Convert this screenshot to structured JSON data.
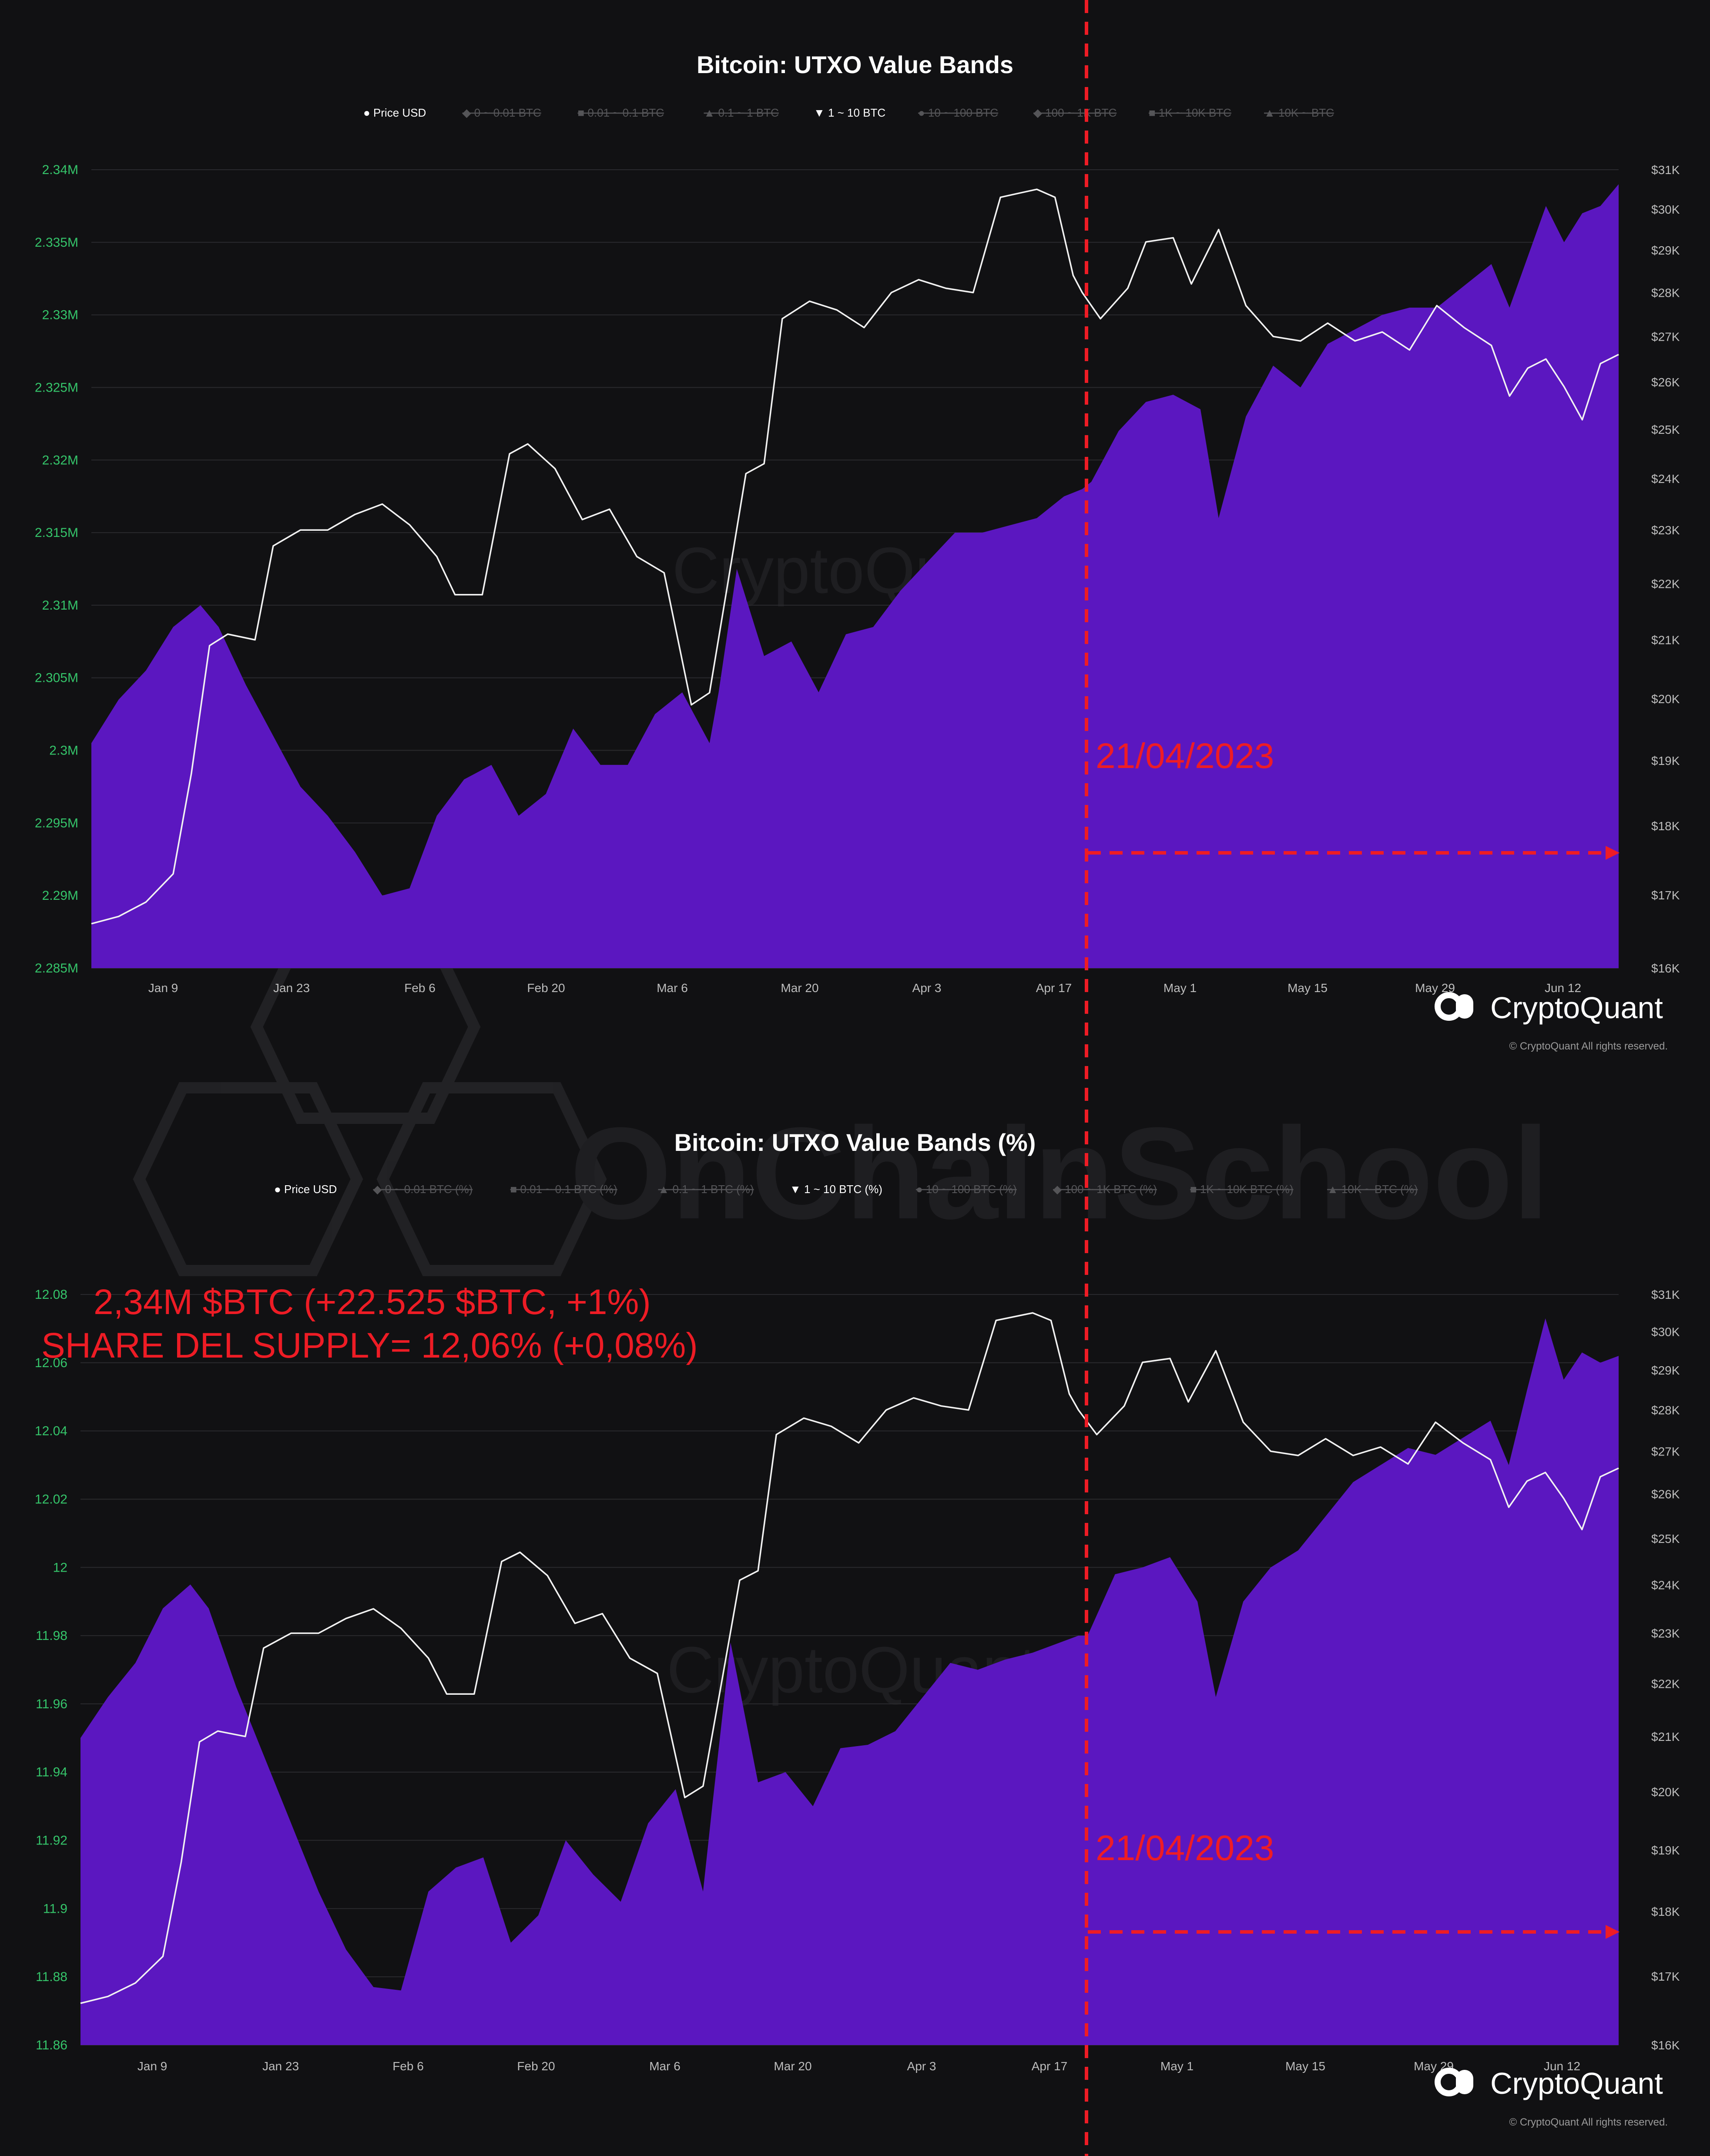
{
  "page": {
    "watermark_main": "OnChainSchool",
    "brand": "CryptoQuant",
    "copyright": "© CryptoQuant All rights reserved.",
    "chart_watermark": "CryptoQuant",
    "divider_date": "21/04/2023",
    "annotation_line1": "2,34M $BTC (+22.525 $BTC, +1%)",
    "annotation_line2": "SHARE DEL SUPPLY= 12,06% (+0,08%)",
    "colors": {
      "background": "#111113",
      "area": "#5b17c0",
      "price_line": "#f2f2f2",
      "left_ticks": "#35c46a",
      "right_ticks": "#bdbdbd",
      "annotation": "#ee1c25",
      "grid": "#2a2a2e"
    },
    "icons": [
      "cryptoquant-logo-icon",
      "hexagon-watermark-icon"
    ]
  },
  "chart_data": [
    {
      "type": "area",
      "title": "Bitcoin: UTXO Value Bands",
      "legend": [
        "● Price USD",
        "◆ 0 ~ 0.01 BTC",
        "■ 0.01 ~ 0.1 BTC",
        "▲ 0.1 ~ 1 BTC",
        "▼ 1 ~ 10 BTC",
        "● 10 ~ 100 BTC",
        "◆ 100 ~ 1K BTC",
        "■ 1K ~ 10K BTC",
        "▲ 10K ~ BTC"
      ],
      "legend_active": [
        true,
        false,
        false,
        false,
        true,
        false,
        false,
        false,
        false
      ],
      "x_ticks": [
        "Jan 9",
        "Jan 23",
        "Feb 6",
        "Feb 20",
        "Mar 6",
        "Mar 20",
        "Apr 3",
        "Apr 17",
        "May 1",
        "May 15",
        "May 29",
        "Jun 12"
      ],
      "y_left_ticks": [
        "2.285M",
        "2.29M",
        "2.295M",
        "2.3M",
        "2.305M",
        "2.31M",
        "2.315M",
        "2.32M",
        "2.325M",
        "2.33M",
        "2.335M",
        "2.34M"
      ],
      "y_right_ticks": [
        "$16K",
        "$17K",
        "$18K",
        "$19K",
        "$20K",
        "$21K",
        "$22K",
        "$23K",
        "$24K",
        "$25K",
        "$26K",
        "$27K",
        "$28K",
        "$29K",
        "$30K",
        "$31K"
      ],
      "ylim_left": [
        2.285,
        2.34
      ],
      "ylim_right": [
        16000,
        31000
      ],
      "right_scale": "log",
      "series": [
        {
          "name": "1 ~ 10 BTC",
          "axis": "left",
          "unit": "M BTC",
          "x": [
            "2023-01-01",
            "2023-01-04",
            "2023-01-07",
            "2023-01-10",
            "2023-01-13",
            "2023-01-15",
            "2023-01-18",
            "2023-01-21",
            "2023-01-24",
            "2023-01-27",
            "2023-01-30",
            "2023-02-02",
            "2023-02-05",
            "2023-02-08",
            "2023-02-11",
            "2023-02-14",
            "2023-02-17",
            "2023-02-20",
            "2023-02-23",
            "2023-02-26",
            "2023-03-01",
            "2023-03-04",
            "2023-03-07",
            "2023-03-10",
            "2023-03-11",
            "2023-03-13",
            "2023-03-16",
            "2023-03-19",
            "2023-03-22",
            "2023-03-25",
            "2023-03-28",
            "2023-03-31",
            "2023-04-03",
            "2023-04-06",
            "2023-04-09",
            "2023-04-12",
            "2023-04-15",
            "2023-04-18",
            "2023-04-20",
            "2023-04-21",
            "2023-04-24",
            "2023-04-27",
            "2023-04-30",
            "2023-05-03",
            "2023-05-05",
            "2023-05-08",
            "2023-05-11",
            "2023-05-14",
            "2023-05-17",
            "2023-05-20",
            "2023-05-23",
            "2023-05-26",
            "2023-05-29",
            "2023-06-01",
            "2023-06-04",
            "2023-06-06",
            "2023-06-08",
            "2023-06-10",
            "2023-06-12",
            "2023-06-14",
            "2023-06-16",
            "2023-06-18"
          ],
          "values": [
            2.3005,
            2.3035,
            2.3055,
            2.3085,
            2.31,
            2.3085,
            2.3045,
            2.301,
            2.2975,
            2.2955,
            2.293,
            2.29,
            2.2905,
            2.2955,
            2.298,
            2.299,
            2.2955,
            2.297,
            2.3015,
            2.299,
            2.299,
            2.3025,
            2.304,
            2.3005,
            2.304,
            2.3125,
            2.3065,
            2.3075,
            2.304,
            2.308,
            2.3085,
            2.311,
            2.313,
            2.315,
            2.315,
            2.3155,
            2.316,
            2.3175,
            2.318,
            2.3185,
            2.322,
            2.324,
            2.3245,
            2.3235,
            2.316,
            2.323,
            2.3265,
            2.325,
            2.328,
            2.329,
            2.33,
            2.3305,
            2.3305,
            2.332,
            2.3335,
            2.3305,
            2.334,
            2.3375,
            2.335,
            2.337,
            2.3375,
            2.339
          ]
        },
        {
          "name": "Price USD",
          "axis": "right",
          "unit": "USD",
          "x": [
            "2023-01-01",
            "2023-01-04",
            "2023-01-07",
            "2023-01-10",
            "2023-01-12",
            "2023-01-14",
            "2023-01-16",
            "2023-01-19",
            "2023-01-21",
            "2023-01-24",
            "2023-01-27",
            "2023-01-30",
            "2023-02-02",
            "2023-02-05",
            "2023-02-08",
            "2023-02-10",
            "2023-02-13",
            "2023-02-16",
            "2023-02-18",
            "2023-02-21",
            "2023-02-24",
            "2023-02-27",
            "2023-03-02",
            "2023-03-05",
            "2023-03-08",
            "2023-03-10",
            "2023-03-12",
            "2023-03-14",
            "2023-03-16",
            "2023-03-18",
            "2023-03-21",
            "2023-03-24",
            "2023-03-27",
            "2023-03-30",
            "2023-04-02",
            "2023-04-05",
            "2023-04-08",
            "2023-04-11",
            "2023-04-13",
            "2023-04-15",
            "2023-04-17",
            "2023-04-19",
            "2023-04-20",
            "2023-04-22",
            "2023-04-25",
            "2023-04-27",
            "2023-04-30",
            "2023-05-02",
            "2023-05-05",
            "2023-05-08",
            "2023-05-11",
            "2023-05-14",
            "2023-05-17",
            "2023-05-20",
            "2023-05-23",
            "2023-05-26",
            "2023-05-29",
            "2023-06-01",
            "2023-06-04",
            "2023-06-06",
            "2023-06-08",
            "2023-06-10",
            "2023-06-12",
            "2023-06-14",
            "2023-06-16",
            "2023-06-18"
          ],
          "values": [
            16600,
            16700,
            16900,
            17300,
            18800,
            20900,
            21100,
            21000,
            22700,
            23000,
            23000,
            23300,
            23500,
            23100,
            22500,
            21800,
            21800,
            24500,
            24700,
            24200,
            23200,
            23400,
            22500,
            22200,
            19900,
            20100,
            22000,
            24100,
            24300,
            27400,
            27800,
            27600,
            27200,
            28000,
            28300,
            28100,
            28000,
            30300,
            30400,
            30500,
            30300,
            28400,
            28000,
            27400,
            28100,
            29200,
            29300,
            28200,
            29500,
            27700,
            27000,
            26900,
            27300,
            26900,
            27100,
            26700,
            27700,
            27200,
            26800,
            25700,
            26300,
            26500,
            25900,
            25200,
            26400,
            26600
          ]
        }
      ]
    },
    {
      "type": "area",
      "title": "Bitcoin: UTXO Value Bands (%)",
      "legend": [
        "● Price USD",
        "◆ 0 ~ 0.01 BTC (%)",
        "■ 0.01 ~ 0.1 BTC (%)",
        "▲ 0.1 ~ 1 BTC (%)",
        "▼ 1 ~ 10 BTC (%)",
        "● 10 ~ 100 BTC (%)",
        "◆ 100 ~ 1K BTC (%)",
        "■ 1K ~ 10K BTC (%)",
        "▲ 10K ~ BTC (%)"
      ],
      "legend_active": [
        true,
        false,
        false,
        false,
        true,
        false,
        false,
        false,
        false
      ],
      "x_ticks": [
        "Jan 9",
        "Jan 23",
        "Feb 6",
        "Feb 20",
        "Mar 6",
        "Mar 20",
        "Apr 3",
        "Apr 17",
        "May 1",
        "May 15",
        "May 29",
        "Jun 12"
      ],
      "y_left_ticks": [
        "11.86",
        "11.88",
        "11.9",
        "11.92",
        "11.94",
        "11.96",
        "11.98",
        "12",
        "12.02",
        "12.04",
        "12.06",
        "12.08"
      ],
      "y_right_ticks": [
        "$16K",
        "$17K",
        "$18K",
        "$19K",
        "$20K",
        "$21K",
        "$22K",
        "$23K",
        "$24K",
        "$25K",
        "$26K",
        "$27K",
        "$28K",
        "$29K",
        "$30K",
        "$31K"
      ],
      "ylim_left": [
        11.86,
        12.08
      ],
      "ylim_right": [
        16000,
        31000
      ],
      "right_scale": "log",
      "series": [
        {
          "name": "1 ~ 10 BTC (%)",
          "axis": "left",
          "unit": "%",
          "x": [
            "2023-01-01",
            "2023-01-04",
            "2023-01-07",
            "2023-01-10",
            "2023-01-13",
            "2023-01-15",
            "2023-01-18",
            "2023-01-21",
            "2023-01-24",
            "2023-01-27",
            "2023-01-30",
            "2023-02-02",
            "2023-02-05",
            "2023-02-08",
            "2023-02-11",
            "2023-02-14",
            "2023-02-17",
            "2023-02-20",
            "2023-02-23",
            "2023-02-26",
            "2023-03-01",
            "2023-03-04",
            "2023-03-07",
            "2023-03-10",
            "2023-03-11",
            "2023-03-13",
            "2023-03-16",
            "2023-03-19",
            "2023-03-22",
            "2023-03-25",
            "2023-03-28",
            "2023-03-31",
            "2023-04-03",
            "2023-04-06",
            "2023-04-09",
            "2023-04-12",
            "2023-04-15",
            "2023-04-18",
            "2023-04-20",
            "2023-04-21",
            "2023-04-24",
            "2023-04-27",
            "2023-04-30",
            "2023-05-03",
            "2023-05-05",
            "2023-05-08",
            "2023-05-11",
            "2023-05-14",
            "2023-05-17",
            "2023-05-20",
            "2023-05-23",
            "2023-05-26",
            "2023-05-29",
            "2023-06-01",
            "2023-06-04",
            "2023-06-06",
            "2023-06-08",
            "2023-06-10",
            "2023-06-12",
            "2023-06-14",
            "2023-06-16",
            "2023-06-18"
          ],
          "values": [
            11.95,
            11.962,
            11.972,
            11.988,
            11.995,
            11.988,
            11.965,
            11.945,
            11.925,
            11.905,
            11.888,
            11.877,
            11.876,
            11.905,
            11.912,
            11.915,
            11.89,
            11.898,
            11.92,
            11.91,
            11.902,
            11.925,
            11.935,
            11.905,
            11.93,
            11.978,
            11.937,
            11.94,
            11.93,
            11.947,
            11.948,
            11.952,
            11.962,
            11.972,
            11.97,
            11.973,
            11.975,
            11.978,
            11.98,
            11.98,
            11.998,
            12.0,
            12.003,
            11.99,
            11.962,
            11.99,
            12.0,
            12.005,
            12.015,
            12.025,
            12.03,
            12.035,
            12.033,
            12.038,
            12.043,
            12.03,
            12.052,
            12.073,
            12.055,
            12.063,
            12.06,
            12.062
          ]
        },
        {
          "name": "Price USD",
          "axis": "right",
          "unit": "USD",
          "x": [
            "2023-01-01",
            "2023-01-04",
            "2023-01-07",
            "2023-01-10",
            "2023-01-12",
            "2023-01-14",
            "2023-01-16",
            "2023-01-19",
            "2023-01-21",
            "2023-01-24",
            "2023-01-27",
            "2023-01-30",
            "2023-02-02",
            "2023-02-05",
            "2023-02-08",
            "2023-02-10",
            "2023-02-13",
            "2023-02-16",
            "2023-02-18",
            "2023-02-21",
            "2023-02-24",
            "2023-02-27",
            "2023-03-02",
            "2023-03-05",
            "2023-03-08",
            "2023-03-10",
            "2023-03-12",
            "2023-03-14",
            "2023-03-16",
            "2023-03-18",
            "2023-03-21",
            "2023-03-24",
            "2023-03-27",
            "2023-03-30",
            "2023-04-02",
            "2023-04-05",
            "2023-04-08",
            "2023-04-11",
            "2023-04-13",
            "2023-04-15",
            "2023-04-17",
            "2023-04-19",
            "2023-04-20",
            "2023-04-22",
            "2023-04-25",
            "2023-04-27",
            "2023-04-30",
            "2023-05-02",
            "2023-05-05",
            "2023-05-08",
            "2023-05-11",
            "2023-05-14",
            "2023-05-17",
            "2023-05-20",
            "2023-05-23",
            "2023-05-26",
            "2023-05-29",
            "2023-06-01",
            "2023-06-04",
            "2023-06-06",
            "2023-06-08",
            "2023-06-10",
            "2023-06-12",
            "2023-06-14",
            "2023-06-16",
            "2023-06-18"
          ],
          "values": [
            16600,
            16700,
            16900,
            17300,
            18800,
            20900,
            21100,
            21000,
            22700,
            23000,
            23000,
            23300,
            23500,
            23100,
            22500,
            21800,
            21800,
            24500,
            24700,
            24200,
            23200,
            23400,
            22500,
            22200,
            19900,
            20100,
            22000,
            24100,
            24300,
            27400,
            27800,
            27600,
            27200,
            28000,
            28300,
            28100,
            28000,
            30300,
            30400,
            30500,
            30300,
            28400,
            28000,
            27400,
            28100,
            29200,
            29300,
            28200,
            29500,
            27700,
            27000,
            26900,
            27300,
            26900,
            27100,
            26700,
            27700,
            27200,
            26800,
            25700,
            26300,
            26500,
            25900,
            25200,
            26400,
            26600
          ]
        }
      ]
    }
  ]
}
